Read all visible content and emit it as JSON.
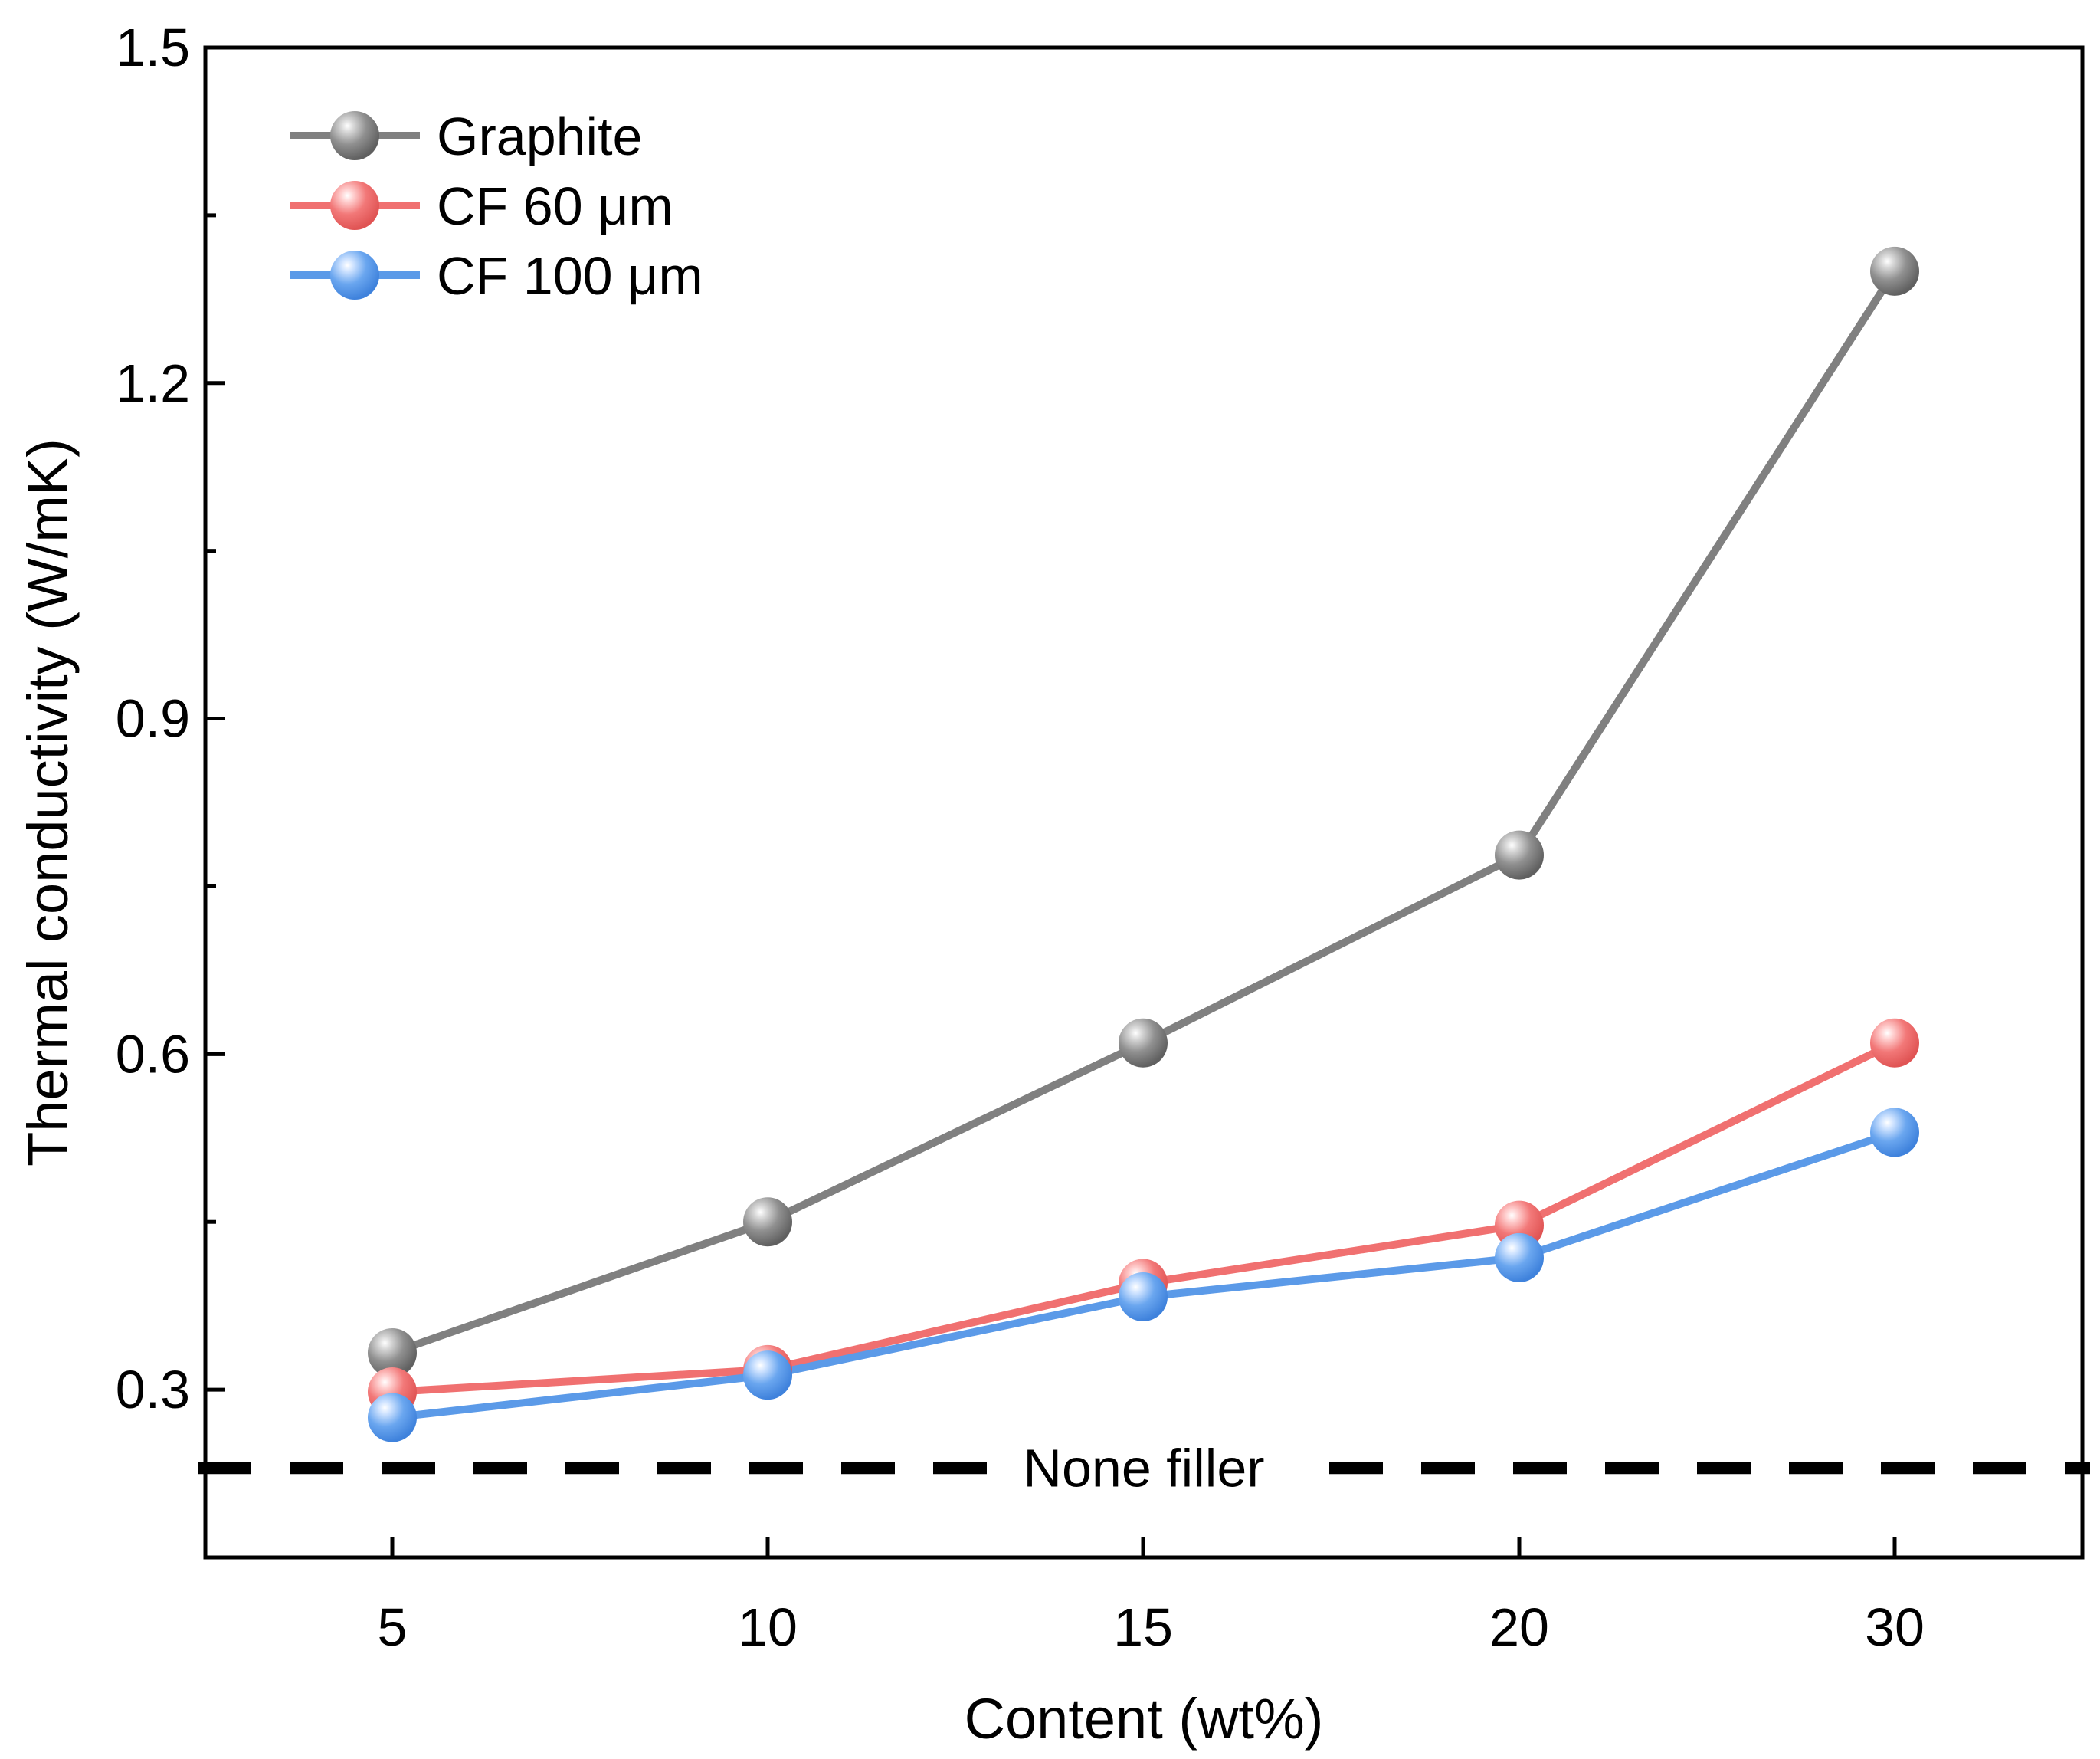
{
  "chart_data": {
    "type": "line",
    "title": "",
    "xlabel": "Content (wt%)",
    "ylabel": "Thermal conductivity (W/mK)",
    "categories": [
      "5",
      "10",
      "15",
      "20",
      "30"
    ],
    "ylim": [
      0.15,
      1.5
    ],
    "yticks": [
      "0.3",
      "0.6",
      "0.9",
      "1.2",
      "1.5"
    ],
    "ytick_values": [
      0.3,
      0.6,
      0.9,
      1.2,
      1.5
    ],
    "grid": false,
    "legend_position": "top-left",
    "series": [
      {
        "name": "Graphite",
        "color": "#808080",
        "values": [
          0.333,
          0.45,
          0.61,
          0.778,
          1.3
        ]
      },
      {
        "name": "CF 60 μm",
        "color": "#f07070",
        "values": [
          0.298,
          0.318,
          0.395,
          0.447,
          0.61
        ]
      },
      {
        "name": "CF 100 μm",
        "color": "#5b9ae8",
        "values": [
          0.275,
          0.313,
          0.383,
          0.418,
          0.53
        ]
      }
    ],
    "reference_line": {
      "label": "None filler",
      "value": 0.23,
      "color": "#000000"
    }
  }
}
